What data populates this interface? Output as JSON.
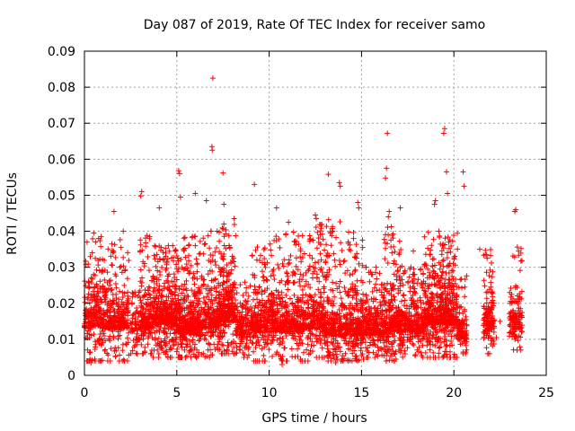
{
  "chart_data": {
    "type": "scatter",
    "title": "Day 087 of 2019, Rate Of TEC Index for receiver samo",
    "xlabel": "GPS time / hours",
    "ylabel": "ROTI / TECUs",
    "xlim": [
      0,
      25
    ],
    "ylim": [
      0,
      0.09
    ],
    "xticks": [
      0,
      5,
      10,
      15,
      20,
      25
    ],
    "yticks": [
      0,
      0.01,
      0.02,
      0.03,
      0.04,
      0.05,
      0.06,
      0.07,
      0.08,
      0.09
    ],
    "xtick_labels": [
      "0",
      "5",
      "10",
      "15",
      "20",
      "25"
    ],
    "ytick_labels": [
      "0",
      "0.01",
      "0.02",
      "0.03",
      "0.04",
      "0.05",
      "0.06",
      "0.07",
      "0.08",
      "0.09"
    ],
    "grid": true,
    "marker": "plus",
    "color": "#ff0000",
    "series": [
      {
        "points": [
          [
            6.95,
            0.0825
          ],
          [
            6.9,
            0.0635
          ],
          [
            6.92,
            0.0625
          ],
          [
            16.4,
            0.0672
          ],
          [
            19.5,
            0.0685
          ],
          [
            19.45,
            0.0672
          ],
          [
            5.1,
            0.0568
          ],
          [
            5.15,
            0.056
          ],
          [
            7.5,
            0.0562
          ],
          [
            13.2,
            0.0558
          ],
          [
            13.8,
            0.0535
          ],
          [
            13.85,
            0.0525
          ],
          [
            16.35,
            0.0575
          ],
          [
            16.3,
            0.0548
          ],
          [
            19.6,
            0.0565
          ],
          [
            20.5,
            0.0565
          ],
          [
            20.55,
            0.0525
          ],
          [
            9.2,
            0.053
          ],
          [
            3.1,
            0.051
          ],
          [
            3.05,
            0.0498
          ],
          [
            6.0,
            0.0505
          ],
          [
            5.2,
            0.0495
          ],
          [
            6.6,
            0.0485
          ],
          [
            7.55,
            0.0475
          ],
          [
            19.65,
            0.0505
          ],
          [
            19.0,
            0.0485
          ],
          [
            18.95,
            0.0475
          ],
          [
            16.5,
            0.0455
          ],
          [
            16.45,
            0.044
          ],
          [
            17.1,
            0.0465
          ],
          [
            23.35,
            0.046
          ],
          [
            23.3,
            0.0455
          ],
          [
            14.8,
            0.048
          ],
          [
            14.85,
            0.0465
          ],
          [
            10.4,
            0.0465
          ],
          [
            4.05,
            0.0465
          ],
          [
            12.5,
            0.0445
          ],
          [
            12.55,
            0.0435
          ],
          [
            11.05,
            0.0425
          ],
          [
            8.1,
            0.0435
          ],
          [
            1.6,
            0.0455
          ],
          [
            2.1,
            0.04
          ],
          [
            0.5,
            0.0395
          ],
          [
            0.9,
            0.0385
          ],
          [
            21.4,
            0.035
          ],
          [
            21.8,
            0.0325
          ],
          [
            22.0,
            0.0245
          ],
          [
            22.5,
            0.015
          ],
          [
            23.5,
            0.0345
          ],
          [
            23.6,
            0.0185
          ],
          [
            23.2,
            0.012
          ],
          [
            22.3,
            0.0105
          ],
          [
            17.8,
            0.0345
          ],
          [
            18.2,
            0.0295
          ],
          [
            0.3,
            0.0045
          ],
          [
            0.35,
            0.0035
          ],
          [
            10.7,
            0.003
          ],
          [
            12.1,
            0.004
          ],
          [
            13.6,
            0.0035
          ],
          [
            15.1,
            0.0045
          ]
        ]
      }
    ],
    "clusters": [
      {
        "x": [
          0.0,
          2.4
        ],
        "y": [
          0.004,
          0.038
        ],
        "mode": 0.013,
        "n": 520
      },
      {
        "x": [
          2.5,
          3.0
        ],
        "y": [
          0.006,
          0.024
        ],
        "mode": 0.012,
        "n": 60
      },
      {
        "x": [
          3.0,
          3.7
        ],
        "y": [
          0.006,
          0.04
        ],
        "mode": 0.013,
        "n": 180
      },
      {
        "x": [
          3.7,
          5.0
        ],
        "y": [
          0.005,
          0.036
        ],
        "mode": 0.014,
        "n": 380
      },
      {
        "x": [
          5.0,
          6.3
        ],
        "y": [
          0.005,
          0.04
        ],
        "mode": 0.012,
        "n": 380
      },
      {
        "x": [
          6.3,
          7.2
        ],
        "y": [
          0.005,
          0.04
        ],
        "mode": 0.013,
        "n": 200
      },
      {
        "x": [
          7.2,
          8.2
        ],
        "y": [
          0.006,
          0.042
        ],
        "mode": 0.015,
        "n": 330
      },
      {
        "x": [
          8.2,
          9.0
        ],
        "y": [
          0.005,
          0.026
        ],
        "mode": 0.011,
        "n": 150
      },
      {
        "x": [
          9.0,
          10.3
        ],
        "y": [
          0.004,
          0.038
        ],
        "mode": 0.012,
        "n": 300
      },
      {
        "x": [
          10.3,
          12.0
        ],
        "y": [
          0.004,
          0.04
        ],
        "mode": 0.012,
        "n": 380
      },
      {
        "x": [
          12.0,
          13.0
        ],
        "y": [
          0.005,
          0.042
        ],
        "mode": 0.013,
        "n": 240
      },
      {
        "x": [
          13.0,
          14.2
        ],
        "y": [
          0.004,
          0.044
        ],
        "mode": 0.011,
        "n": 300
      },
      {
        "x": [
          14.2,
          15.2
        ],
        "y": [
          0.004,
          0.04
        ],
        "mode": 0.011,
        "n": 260
      },
      {
        "x": [
          15.2,
          16.2
        ],
        "y": [
          0.005,
          0.03
        ],
        "mode": 0.011,
        "n": 220
      },
      {
        "x": [
          16.2,
          17.2
        ],
        "y": [
          0.004,
          0.042
        ],
        "mode": 0.012,
        "n": 280
      },
      {
        "x": [
          17.2,
          18.4
        ],
        "y": [
          0.005,
          0.03
        ],
        "mode": 0.012,
        "n": 260
      },
      {
        "x": [
          18.4,
          19.4
        ],
        "y": [
          0.005,
          0.04
        ],
        "mode": 0.014,
        "n": 300
      },
      {
        "x": [
          19.4,
          20.2
        ],
        "y": [
          0.005,
          0.04
        ],
        "mode": 0.014,
        "n": 260
      },
      {
        "x": [
          20.2,
          20.7
        ],
        "y": [
          0.006,
          0.03
        ],
        "mode": 0.01,
        "n": 110
      },
      {
        "x": [
          21.6,
          22.2
        ],
        "y": [
          0.006,
          0.035
        ],
        "mode": 0.012,
        "n": 130
      },
      {
        "x": [
          23.0,
          23.7
        ],
        "y": [
          0.007,
          0.036
        ],
        "mode": 0.013,
        "n": 130
      }
    ]
  }
}
